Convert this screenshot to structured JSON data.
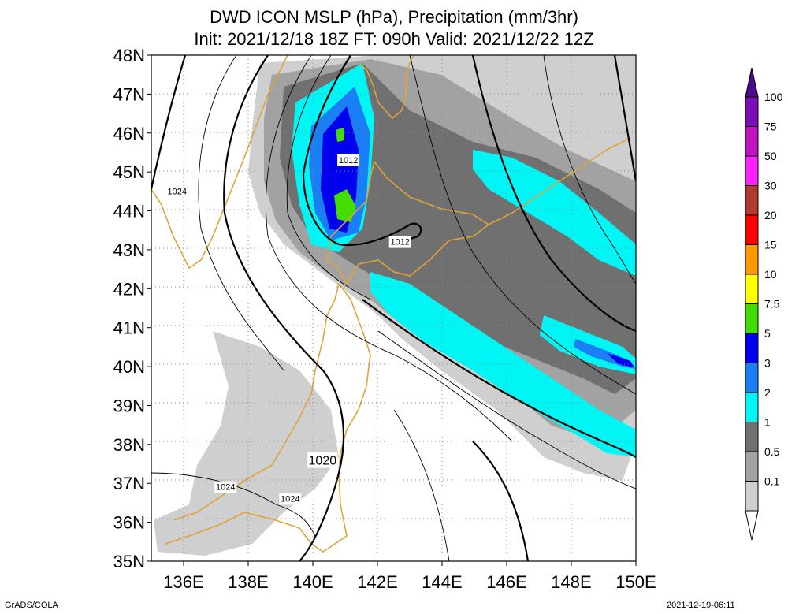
{
  "title": {
    "line1": "DWD ICON MSLP (hPa), Precipitation (mm/3hr)",
    "line2": "Init: 2021/12/18 18Z  FT: 090h  Valid: 2021/12/22 12Z"
  },
  "axes": {
    "lat_labels": [
      "48N",
      "47N",
      "46N",
      "45N",
      "44N",
      "43N",
      "42N",
      "41N",
      "40N",
      "39N",
      "38N",
      "37N",
      "36N",
      "35N"
    ],
    "lon_labels": [
      "136E",
      "138E",
      "140E",
      "142E",
      "144E",
      "146E",
      "148E",
      "150E"
    ]
  },
  "isobar_labels": [
    {
      "text": "1012",
      "lon": 141.1,
      "lat": 45.3
    },
    {
      "text": "1012",
      "lon": 142.7,
      "lat": 43.2
    },
    {
      "text": "1024",
      "lon": 135.8,
      "lat": 44.5
    },
    {
      "text": "1020",
      "lon": 140.3,
      "lat": 37.6
    },
    {
      "text": "1024",
      "lon": 137.3,
      "lat": 36.9
    },
    {
      "text": "1024",
      "lon": 139.3,
      "lat": 36.6
    }
  ],
  "colorbar": {
    "labels": [
      "100",
      "75",
      "50",
      "30",
      "20",
      "15",
      "10",
      "7.5",
      "5",
      "3",
      "2",
      "1",
      "0.5",
      "0.1"
    ],
    "colors": [
      "#7a0fb8",
      "#c014c0",
      "#ff22ff",
      "#b03a2e",
      "#ff0000",
      "#ff9900",
      "#ffff00",
      "#44dd00",
      "#0000ee",
      "#1a7ef5",
      "#00f5f5",
      "#707070",
      "#a2a2a2",
      "#cfcfcf"
    ],
    "top_color": "#4a0a8a"
  },
  "colors": {
    "coast": "#e0a33a",
    "grid": "#888888",
    "isobar": "#000000"
  },
  "footer": {
    "left": "GrADS/COLA",
    "right": "2021-12-19-06:11"
  }
}
